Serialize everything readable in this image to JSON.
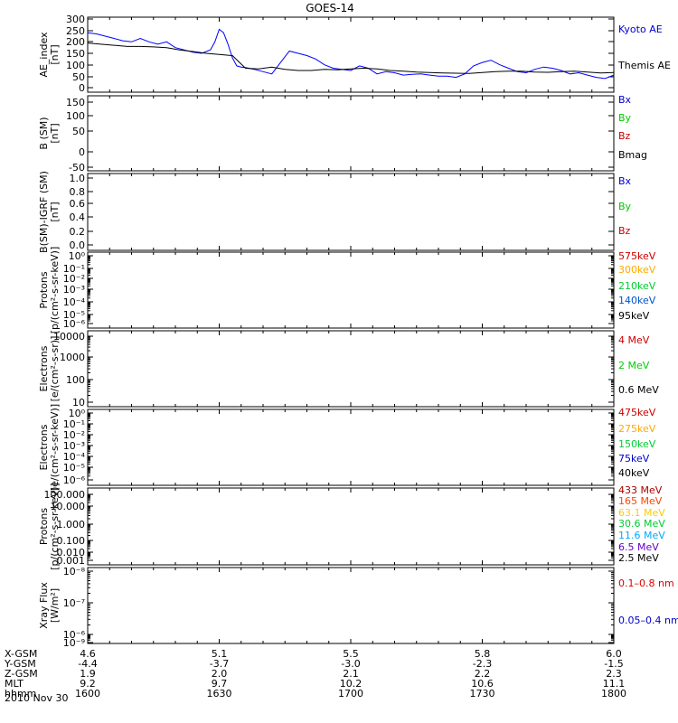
{
  "title": "GOES-14",
  "date_label": "2010 Nov 30",
  "chart_data": [
    {
      "id": "ae",
      "type": "line",
      "ylabel": [
        "AE_index",
        "[nT]"
      ],
      "yticks": [
        "300",
        "250",
        "200",
        "150",
        "100",
        "50",
        "0"
      ],
      "ylim": [
        0,
        300
      ],
      "legend": [
        {
          "name": "Kyoto AE",
          "color": "#0000cc"
        },
        {
          "name": "Themis AE",
          "color": "#000000"
        }
      ],
      "series": [
        {
          "name": "Kyoto AE",
          "color": "#0000ff",
          "x": [
            1600,
            1602,
            1604,
            1606,
            1608,
            1610,
            1612,
            1614,
            1616,
            1618,
            1620,
            1622,
            1624,
            1626,
            1628,
            1629,
            1630,
            1631,
            1632,
            1633,
            1634,
            1635,
            1636,
            1638,
            1640,
            1642,
            1644,
            1646,
            1648,
            1650,
            1652,
            1654,
            1656,
            1658,
            1700,
            1702,
            1704,
            1706,
            1708,
            1710,
            1712,
            1714,
            1716,
            1718,
            1720,
            1722,
            1724,
            1726,
            1728,
            1730,
            1732,
            1734,
            1736,
            1738,
            1740,
            1742,
            1744,
            1746,
            1748,
            1750,
            1752,
            1754,
            1756,
            1758,
            1800
          ],
          "y": [
            240,
            235,
            225,
            215,
            205,
            200,
            215,
            200,
            190,
            200,
            175,
            165,
            155,
            150,
            165,
            200,
            255,
            240,
            190,
            130,
            95,
            90,
            88,
            80,
            70,
            60,
            110,
            160,
            150,
            140,
            125,
            100,
            85,
            80,
            75,
            95,
            85,
            60,
            70,
            65,
            55,
            58,
            60,
            55,
            50,
            50,
            45,
            60,
            95,
            110,
            120,
            100,
            85,
            70,
            65,
            80,
            90,
            85,
            75,
            60,
            65,
            55,
            45,
            40,
            55
          ]
        },
        {
          "name": "Themis AE",
          "color": "#000000",
          "x": [
            1600,
            1603,
            1606,
            1609,
            1612,
            1615,
            1618,
            1621,
            1624,
            1627,
            1630,
            1633,
            1636,
            1639,
            1642,
            1645,
            1648,
            1651,
            1654,
            1657,
            1700,
            1703,
            1706,
            1709,
            1712,
            1715,
            1718,
            1721,
            1724,
            1727,
            1730,
            1733,
            1736,
            1739,
            1742,
            1745,
            1748,
            1751,
            1754,
            1757,
            1800
          ],
          "y": [
            195,
            190,
            185,
            180,
            180,
            178,
            175,
            165,
            158,
            150,
            145,
            140,
            85,
            82,
            90,
            80,
            75,
            75,
            80,
            78,
            82,
            85,
            82,
            75,
            72,
            68,
            66,
            64,
            63,
            62,
            66,
            70,
            72,
            72,
            68,
            67,
            70,
            72,
            68,
            64,
            66
          ]
        }
      ]
    },
    {
      "id": "bfield",
      "type": "line",
      "ylabel": [
        "B (SM)",
        "[nT]"
      ],
      "yticks": [
        "150",
        "100",
        "50",
        "0",
        "-50"
      ],
      "ylim": [
        -60,
        160
      ],
      "legend": [
        {
          "name": "Bx",
          "color": "#0000cc"
        },
        {
          "name": "By",
          "color": "#00cc00"
        },
        {
          "name": "Bz",
          "color": "#cc0000"
        },
        {
          "name": "Bmag",
          "color": "#000000"
        }
      ],
      "series": []
    },
    {
      "id": "bdiff",
      "type": "line",
      "ylabel": [
        "B(SM)-IGRF (SM)",
        "[nT]"
      ],
      "yticks": [
        "1.0",
        "0.8",
        "0.6",
        "0.4",
        "0.2",
        "0.0"
      ],
      "ylim": [
        0,
        1
      ],
      "legend": [
        {
          "name": "Bx",
          "color": "#0000cc"
        },
        {
          "name": "By",
          "color": "#00cc00"
        },
        {
          "name": "Bz",
          "color": "#cc0000"
        }
      ],
      "series": []
    },
    {
      "id": "protons_kev",
      "type": "line",
      "log": true,
      "ylabel": [
        "Protons",
        "[p/(cm²-s-sr-keV)]"
      ],
      "yticks": [
        "10⁰",
        "10⁻¹",
        "10⁻²",
        "10⁻³",
        "10⁻⁴",
        "10⁻⁵",
        "10⁻⁶"
      ],
      "legend": [
        {
          "name": "575keV",
          "color": "#cc0000"
        },
        {
          "name": "300keV",
          "color": "#ffaa00"
        },
        {
          "name": "210keV",
          "color": "#00cc33"
        },
        {
          "name": "140keV",
          "color": "#0055cc"
        },
        {
          "name": "95keV",
          "color": "#000000"
        }
      ],
      "series": []
    },
    {
      "id": "electrons_mev",
      "type": "line",
      "log": true,
      "ylabel": [
        "Electrons",
        "[e/(cm²-s-sr)]"
      ],
      "yticks": [
        "10000",
        "1000",
        "100",
        "10"
      ],
      "legend": [
        {
          "name": "4 MeV",
          "color": "#cc0000"
        },
        {
          "name": "2 MeV",
          "color": "#00cc00"
        },
        {
          "name": "0.6 MeV",
          "color": "#000000"
        }
      ],
      "series": []
    },
    {
      "id": "electrons_kev",
      "type": "line",
      "log": true,
      "ylabel": [
        "Electrons",
        "[e/(cm²-s-sr-keV)]"
      ],
      "yticks": [
        "10⁰",
        "10⁻¹",
        "10⁻²",
        "10⁻³",
        "10⁻⁴",
        "10⁻⁵",
        "10⁻⁶"
      ],
      "legend": [
        {
          "name": "475keV",
          "color": "#cc0000"
        },
        {
          "name": "275keV",
          "color": "#ffaa00"
        },
        {
          "name": "150keV",
          "color": "#00cc33"
        },
        {
          "name": "75keV",
          "color": "#0000cc"
        },
        {
          "name": "40keV",
          "color": "#000000"
        }
      ],
      "series": []
    },
    {
      "id": "protons_mev",
      "type": "line",
      "log": true,
      "ylabel": [
        "Protons",
        "[p/(cm²-s-sr-keV)]"
      ],
      "yticks": [
        "100.000",
        "10.000",
        "1.000",
        "0.100",
        "0.010",
        "0.001"
      ],
      "legend": [
        {
          "name": "433 MeV",
          "color": "#aa0000"
        },
        {
          "name": "165 MeV",
          "color": "#ff4400"
        },
        {
          "name": "63.1 MeV",
          "color": "#ffcc00"
        },
        {
          "name": "30.6 MeV",
          "color": "#00cc33"
        },
        {
          "name": "11.6 MeV",
          "color": "#00aaff"
        },
        {
          "name": "6.5 MeV",
          "color": "#6600cc"
        },
        {
          "name": "2.5 MeV",
          "color": "#000000"
        }
      ],
      "series": []
    },
    {
      "id": "xray",
      "type": "line",
      "log": true,
      "ylabel": [
        "Xray Flux",
        "[W/m²]"
      ],
      "yticks": [
        "10⁻⁸",
        "10⁻⁷",
        "10⁻⁶",
        "10⁻⁹"
      ],
      "legend": [
        {
          "name": "0.1–0.8 nm",
          "color": "#dd0000"
        },
        {
          "name": "0.05–0.4 nm",
          "color": "#0000cc"
        }
      ],
      "series": []
    }
  ],
  "xaxis": {
    "row_labels": [
      "X-GSM",
      "Y-GSM",
      "Z-GSM",
      "MLT",
      "hhmm"
    ],
    "columns": [
      {
        "x": 1600,
        "values": [
          "4.6",
          "-4.4",
          "1.9",
          "9.2",
          "1600"
        ]
      },
      {
        "x": 1630,
        "values": [
          "5.1",
          "-3.7",
          "2.0",
          "9.7",
          "1630"
        ]
      },
      {
        "x": 1700,
        "values": [
          "5.5",
          "-3.0",
          "2.1",
          "10.2",
          "1700"
        ]
      },
      {
        "x": 1730,
        "values": [
          "5.8",
          "-2.3",
          "2.2",
          "10.6",
          "1730"
        ]
      },
      {
        "x": 1800,
        "values": [
          "6.0",
          "-1.5",
          "2.3",
          "11.1",
          "1800"
        ]
      }
    ]
  }
}
